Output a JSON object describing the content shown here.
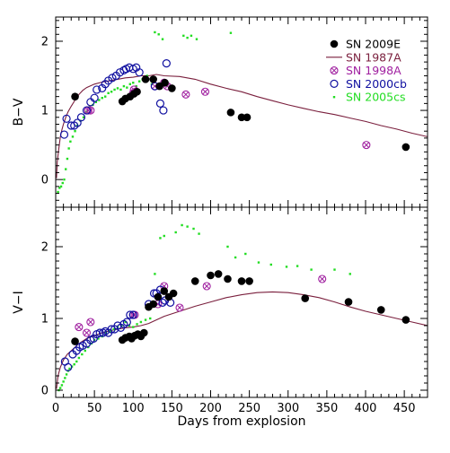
{
  "chart_data": {
    "type": "scatter",
    "layout": "two vertically stacked panels sharing x axis",
    "xlabel": "Days from explosion",
    "xlim": [
      0,
      480
    ],
    "x_ticks": [
      0,
      50,
      100,
      150,
      200,
      250,
      300,
      350,
      400,
      450
    ],
    "x_tick_labels": [
      "0",
      "50",
      "100",
      "150",
      "200",
      "250",
      "300",
      "350",
      "400",
      "450"
    ],
    "colors": {
      "SN 2009E": "#000000",
      "SN 1987A": "#7a1f3d",
      "SN 1998A": "#a020a0",
      "SN 2000cb": "#1010a0",
      "SN 2005cs": "#22dd22"
    },
    "legend": {
      "placement": "top-right of upper panel",
      "entries": [
        {
          "label": "SN 2009E",
          "marker": "filled-circle"
        },
        {
          "label": "SN 1987A",
          "marker": "line"
        },
        {
          "label": "SN 1998A",
          "marker": "circled-cross"
        },
        {
          "label": "SN 2000cb",
          "marker": "open-circle"
        },
        {
          "label": "SN 2005cs",
          "marker": "small-dot"
        }
      ]
    },
    "panels": [
      {
        "ylabel": "B−V",
        "ylim": [
          -0.4,
          2.35
        ],
        "y_ticks": [
          0,
          1,
          2
        ],
        "y_tick_labels": [
          "0",
          "1",
          "2"
        ],
        "series": [
          {
            "name": "SN 2009E",
            "x": [
              25,
              86,
              90,
              96,
              101,
              105,
              116,
              126,
              134,
              141,
              150,
              226,
              240,
              247,
              452
            ],
            "y": [
              1.2,
              1.13,
              1.17,
              1.2,
              1.24,
              1.27,
              1.45,
              1.45,
              1.35,
              1.4,
              1.32,
              0.97,
              0.9,
              0.9,
              0.47
            ]
          },
          {
            "name": "SN 1987A",
            "x": [
              1,
              2,
              4,
              6,
              8,
              10,
              13,
              16,
              20,
              25,
              30,
              35,
              40,
              50,
              60,
              70,
              80,
              90,
              100,
              110,
              120,
              130,
              140,
              160,
              180,
              200,
              220,
              240,
              260,
              280,
              300,
              320,
              340,
              360,
              380,
              400,
              420,
              440,
              460,
              480
            ],
            "y": [
              0.02,
              0.25,
              0.45,
              0.62,
              0.72,
              0.8,
              0.9,
              0.98,
              1.06,
              1.15,
              1.23,
              1.29,
              1.33,
              1.38,
              1.41,
              1.43,
              1.45,
              1.47,
              1.48,
              1.5,
              1.5,
              1.52,
              1.5,
              1.49,
              1.45,
              1.38,
              1.32,
              1.27,
              1.2,
              1.14,
              1.08,
              1.03,
              0.98,
              0.94,
              0.89,
              0.84,
              0.78,
              0.73,
              0.67,
              0.62
            ]
          },
          {
            "name": "SN 1998A",
            "x": [
              42,
              45,
              100,
              101,
              103,
              128,
              140,
              144,
              168,
              193,
              401
            ],
            "y": [
              1.0,
              1.0,
              1.25,
              1.3,
              1.27,
              1.35,
              1.4,
              1.35,
              1.23,
              1.27,
              0.5
            ]
          },
          {
            "name": "SN 2000cb",
            "x": [
              11,
              14,
              20,
              24,
              28,
              33,
              40,
              45,
              50,
              53,
              60,
              64,
              68,
              73,
              78,
              83,
              88,
              91,
              95,
              100,
              104,
              108,
              128,
              135,
              139,
              143
            ],
            "y": [
              0.65,
              0.88,
              0.78,
              0.78,
              0.82,
              0.9,
              1.0,
              1.12,
              1.18,
              1.3,
              1.32,
              1.38,
              1.43,
              1.47,
              1.5,
              1.55,
              1.58,
              1.6,
              1.62,
              1.6,
              1.62,
              1.55,
              1.35,
              1.1,
              1.0,
              1.68
            ]
          },
          {
            "name": "SN 2005cs",
            "x": [
              3,
              5,
              7,
              9,
              11,
              13,
              15,
              17,
              19,
              22,
              25,
              28,
              32,
              36,
              40,
              44,
              48,
              52,
              56,
              60,
              64,
              68,
              72,
              76,
              80,
              84,
              88,
              92,
              96,
              100,
              104,
              108,
              112,
              118,
              124,
              128,
              133,
              138,
              165,
              170,
              175,
              182,
              226
            ],
            "y": [
              -0.18,
              -0.12,
              -0.1,
              -0.05,
              0.0,
              0.15,
              0.3,
              0.45,
              0.55,
              0.62,
              0.7,
              0.78,
              0.85,
              0.9,
              0.98,
              1.05,
              1.08,
              1.12,
              1.15,
              1.18,
              1.2,
              1.25,
              1.27,
              1.3,
              1.32,
              1.3,
              1.35,
              1.33,
              1.38,
              1.4,
              1.35,
              1.42,
              1.45,
              1.5,
              1.38,
              2.13,
              2.1,
              2.03,
              2.08,
              2.05,
              2.08,
              2.03,
              2.12
            ]
          }
        ]
      },
      {
        "ylabel": "V−I",
        "ylim": [
          -0.1,
          2.55
        ],
        "y_ticks": [
          0,
          1,
          2
        ],
        "y_tick_labels": [
          "0",
          "1",
          "2"
        ],
        "series": [
          {
            "name": "SN 2009E",
            "x": [
              25,
              86,
              90,
              95,
              98,
              102,
              106,
              110,
              114,
              120,
              126,
              132,
              140,
              146,
              152,
              180,
              200,
              210,
              222,
              240,
              250,
              322,
              378,
              420,
              452
            ],
            "y": [
              0.68,
              0.7,
              0.73,
              0.75,
              0.72,
              0.76,
              0.78,
              0.75,
              0.8,
              1.16,
              1.2,
              1.3,
              1.38,
              1.3,
              1.35,
              1.52,
              1.6,
              1.62,
              1.55,
              1.52,
              1.52,
              1.28,
              1.23,
              1.12,
              0.98
            ]
          },
          {
            "name": "SN 1987A",
            "x": [
              1,
              3,
              6,
              10,
              15,
              20,
              25,
              30,
              40,
              50,
              60,
              70,
              80,
              90,
              100,
              110,
              120,
              130,
              140,
              160,
              180,
              200,
              220,
              240,
              260,
              280,
              300,
              320,
              340,
              360,
              380,
              400,
              420,
              440,
              460,
              480
            ],
            "y": [
              0.02,
              0.2,
              0.32,
              0.42,
              0.5,
              0.55,
              0.6,
              0.65,
              0.72,
              0.76,
              0.8,
              0.83,
              0.85,
              0.87,
              0.88,
              0.9,
              0.93,
              0.98,
              1.03,
              1.1,
              1.17,
              1.23,
              1.29,
              1.33,
              1.36,
              1.37,
              1.36,
              1.33,
              1.29,
              1.23,
              1.16,
              1.1,
              1.05,
              1.0,
              0.95,
              0.9
            ]
          },
          {
            "name": "SN 1998A",
            "x": [
              30,
              40,
              45,
              100,
              102,
              132,
              140,
              160,
              195,
              344
            ],
            "y": [
              0.88,
              0.8,
              0.95,
              1.05,
              1.05,
              1.2,
              1.45,
              1.15,
              1.45,
              1.55
            ]
          },
          {
            "name": "SN 2000cb",
            "x": [
              12,
              16,
              22,
              27,
              31,
              35,
              40,
              45,
              49,
              53,
              57,
              61,
              64,
              68,
              72,
              76,
              80,
              84,
              88,
              92,
              96,
              100,
              120,
              127,
              130,
              135,
              138,
              141,
              148
            ],
            "y": [
              0.4,
              0.32,
              0.5,
              0.55,
              0.6,
              0.62,
              0.65,
              0.7,
              0.72,
              0.78,
              0.8,
              0.8,
              0.82,
              0.8,
              0.85,
              0.85,
              0.9,
              0.87,
              0.92,
              0.95,
              1.05,
              1.05,
              1.2,
              1.35,
              1.35,
              1.4,
              1.22,
              1.25,
              1.22
            ]
          },
          {
            "name": "SN 2005cs",
            "x": [
              4,
              6,
              8,
              10,
              12,
              14,
              16,
              18,
              21,
              24,
              27,
              30,
              34,
              38,
              42,
              46,
              50,
              55,
              60,
              65,
              70,
              75,
              80,
              85,
              90,
              95,
              100,
              105,
              110,
              116,
              122,
              128,
              135,
              140,
              155,
              163,
              170,
              178,
              185,
              222,
              232,
              245,
              262,
              278,
              298,
              312,
              330,
              360,
              380
            ],
            "y": [
              0.0,
              0.03,
              0.07,
              0.12,
              0.17,
              0.22,
              0.27,
              0.3,
              0.33,
              0.36,
              0.4,
              0.45,
              0.5,
              0.55,
              0.6,
              0.65,
              0.7,
              0.72,
              0.75,
              0.8,
              0.82,
              0.85,
              0.88,
              0.9,
              0.95,
              0.9,
              0.88,
              0.92,
              0.95,
              0.98,
              1.0,
              1.62,
              2.12,
              2.15,
              2.2,
              2.3,
              2.28,
              2.25,
              2.18,
              2.0,
              1.85,
              1.9,
              1.78,
              1.75,
              1.72,
              1.73,
              1.68,
              1.68,
              1.62
            ]
          }
        ]
      }
    ]
  }
}
